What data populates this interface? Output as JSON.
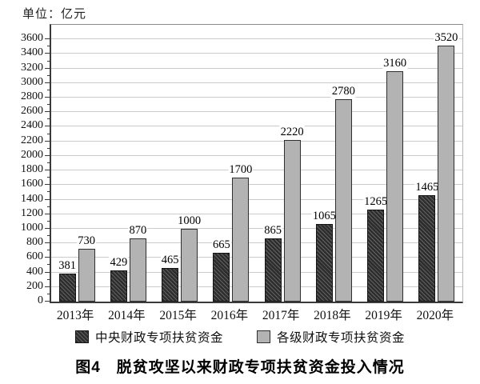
{
  "unit_label": "单位：亿元",
  "caption": "图4　脱贫攻坚以来财政专项扶贫资金投入情况",
  "colors": {
    "central_bar_base": "#2d2d2d",
    "central_bar_hatch": "#636363",
    "levels_bar_fill": "#b3b3b3",
    "bar_border": "#2f2f2f",
    "gridline": "#cccccc",
    "axis": "#3a3a3a"
  },
  "chart_data": {
    "type": "bar",
    "title": "图4　脱贫攻坚以来财政专项扶贫资金投入情况",
    "ylabel": "单位：亿元",
    "categories": [
      "2013年",
      "2014年",
      "2015年",
      "2016年",
      "2017年",
      "2018年",
      "2019年",
      "2020年"
    ],
    "series": [
      {
        "name": "中央财政专项扶贫资金",
        "style": "dark-hatched",
        "values": [
          381,
          429,
          465,
          665,
          865,
          1065,
          1265,
          1465
        ]
      },
      {
        "name": "各级财政专项扶贫资金",
        "style": "gray-solid",
        "values": [
          730,
          870,
          1000,
          1700,
          2220,
          2780,
          3160,
          3520
        ]
      }
    ],
    "ylim": [
      0,
      3800
    ],
    "y_ticks": [
      0,
      200,
      400,
      600,
      800,
      1000,
      1200,
      1400,
      1600,
      1800,
      2000,
      2200,
      2400,
      2600,
      2800,
      3000,
      3200,
      3400,
      3600
    ],
    "y_minor_tick_step": 100,
    "grid": "horizontal",
    "legend_position": "bottom"
  }
}
